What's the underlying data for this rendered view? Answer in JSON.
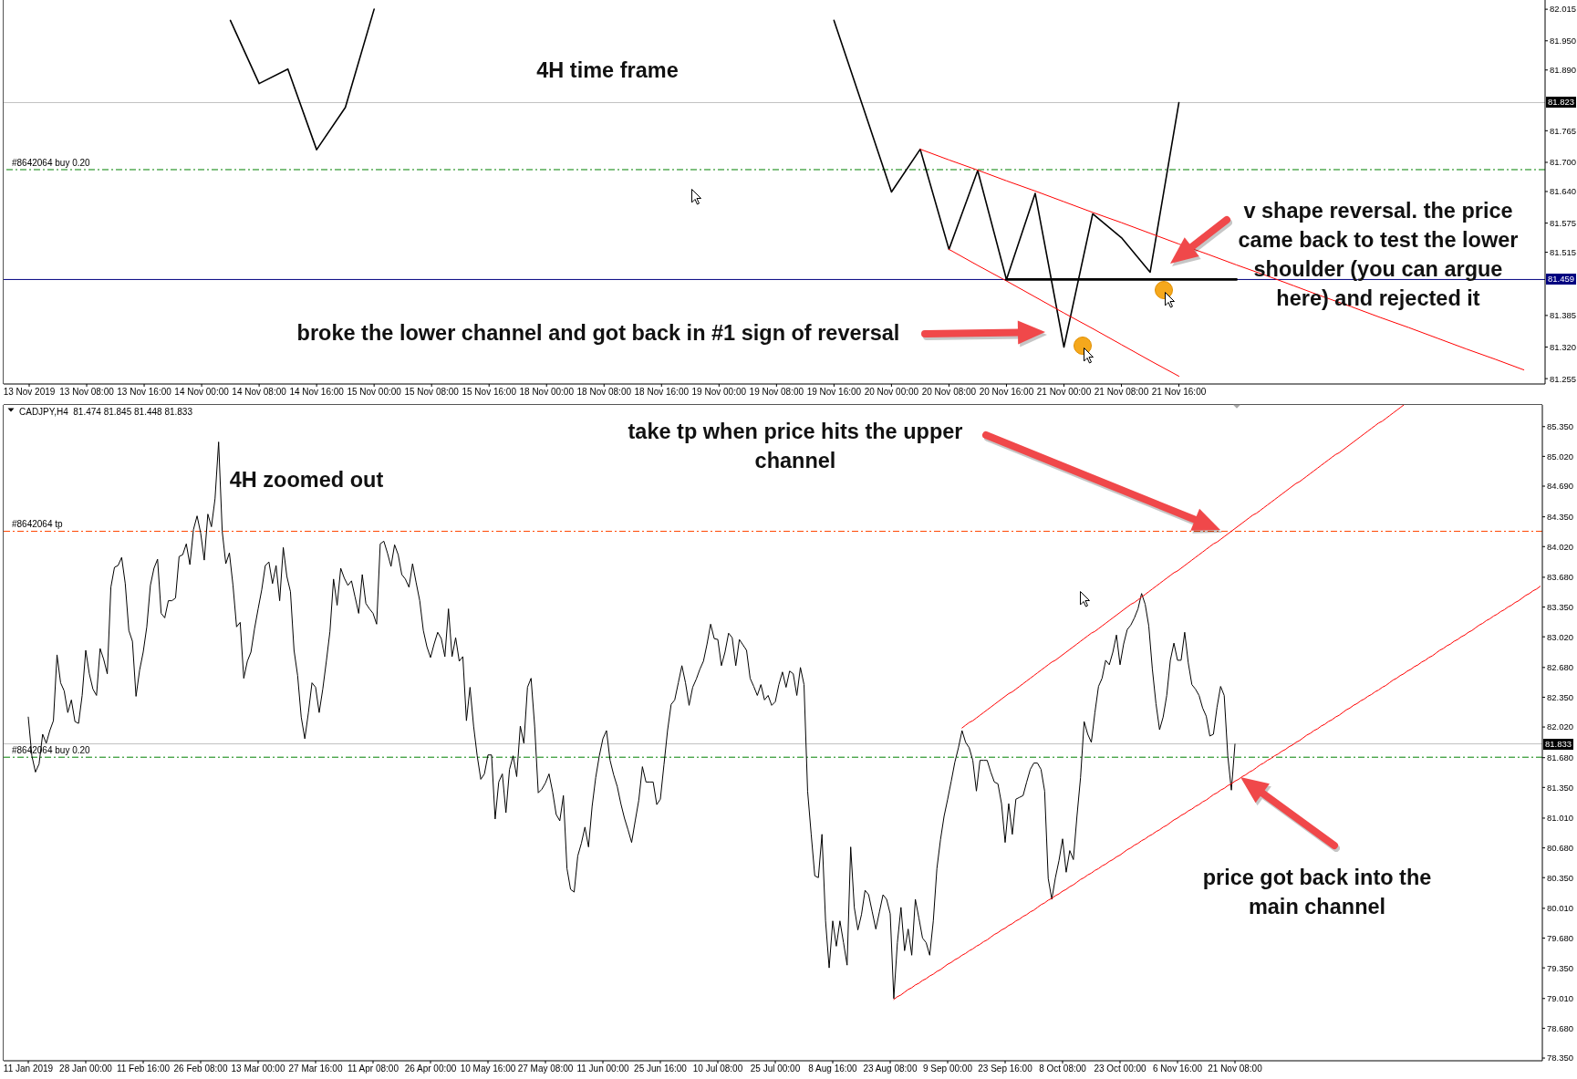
{
  "chart_data": [
    {
      "type": "line",
      "title": "4H time frame",
      "marker": "none",
      "categories": [
        "13 Nov 2019",
        null,
        "13 Nov 08:00",
        null,
        "13 Nov 16:00",
        null,
        "14 Nov 00:00",
        null,
        "14 Nov 08:00",
        null,
        "14 Nov 16:00",
        null,
        "15 Nov 00:00",
        null,
        "15 Nov 08:00",
        null,
        "15 Nov 16:00",
        null,
        "18 Nov 00:00",
        null,
        "18 Nov 08:00",
        null,
        "18 Nov 16:00",
        null,
        "19 Nov 00:00",
        null,
        "19 Nov 08:00",
        null,
        "19 Nov 16:00",
        null,
        "20 Nov 00:00",
        null,
        "20 Nov 08:00",
        null,
        "20 Nov 16:00",
        null,
        "21 Nov 00:00",
        null,
        "21 Nov 08:00",
        null,
        "21 Nov 16:00",
        null,
        null,
        null,
        null,
        null,
        null,
        null,
        null,
        null,
        null,
        null,
        null
      ],
      "series": [
        {
          "color": "#000000",
          "values": [
            null,
            null,
            null,
            null,
            null,
            null,
            null,
            81.992,
            81.862,
            81.892,
            81.726,
            81.813,
            82.015,
            null,
            null,
            null,
            null,
            null,
            null,
            null,
            null,
            null,
            null,
            null,
            null,
            null,
            null,
            null,
            81.992,
            81.816,
            81.639,
            81.727,
            81.521,
            81.683,
            81.459,
            81.636,
            81.32,
            81.594,
            81.545,
            81.474,
            81.823,
            null,
            null,
            null,
            null,
            null,
            null,
            null,
            null,
            null,
            null,
            null,
            null
          ]
        },
        {
          "type": "line",
          "color": "#ff0000",
          "values": [
            null,
            null,
            null,
            null,
            null,
            null,
            null,
            null,
            null,
            null,
            null,
            null,
            null,
            null,
            null,
            null,
            null,
            null,
            null,
            null,
            null,
            null,
            null,
            null,
            null,
            null,
            null,
            null,
            null,
            null,
            null,
            81.727,
            81.705,
            81.684,
            81.662,
            81.641,
            81.619,
            81.597,
            81.576,
            81.554,
            81.532,
            81.511,
            81.489,
            81.468,
            81.446,
            81.424,
            81.403,
            81.381,
            81.36,
            81.338,
            81.316,
            81.295,
            81.273
          ]
        },
        {
          "type": "line",
          "color": "#ff0000",
          "values": [
            null,
            null,
            null,
            null,
            null,
            null,
            null,
            null,
            null,
            null,
            null,
            null,
            null,
            null,
            null,
            null,
            null,
            null,
            null,
            null,
            null,
            null,
            null,
            null,
            null,
            null,
            null,
            null,
            null,
            null,
            null,
            null,
            81.521,
            81.488,
            81.456,
            81.423,
            81.39,
            81.358,
            81.325,
            81.292,
            81.26,
            null,
            null,
            null,
            null,
            null,
            null,
            null,
            null,
            null,
            null,
            null,
            null
          ]
        },
        {
          "type": "line",
          "color": "#000000",
          "values": [
            null,
            null,
            null,
            null,
            null,
            null,
            null,
            null,
            null,
            null,
            null,
            null,
            null,
            null,
            null,
            null,
            null,
            null,
            null,
            null,
            null,
            null,
            null,
            null,
            null,
            null,
            null,
            null,
            null,
            null,
            null,
            null,
            null,
            null,
            81.459,
            81.459,
            81.459,
            81.459,
            81.459,
            81.459,
            81.459,
            81.459,
            81.459,
            null,
            null,
            null,
            null,
            null,
            null,
            null,
            null,
            null,
            null
          ]
        }
      ],
      "ylim": [
        81.244,
        82.034
      ],
      "yticks": [
        {
          "value": 82.015,
          "label": "82.015"
        },
        {
          "value": 81.95,
          "label": "81.950"
        },
        {
          "value": 81.89,
          "label": "81.890"
        },
        {
          "value": 81.765,
          "label": "81.765"
        },
        {
          "value": 81.7,
          "label": "81.700"
        },
        {
          "value": 81.64,
          "label": "81.640"
        },
        {
          "value": 81.575,
          "label": "81.575"
        },
        {
          "value": 81.515,
          "label": "81.515"
        },
        {
          "value": 81.385,
          "label": "81.385"
        },
        {
          "value": 81.32,
          "label": "81.320"
        },
        {
          "value": 81.255,
          "label": "81.255"
        }
      ],
      "ref_lines": [
        {
          "axis": "y",
          "value": 81.823,
          "label": "81.823",
          "color": "#c0c0c0"
        },
        {
          "axis": "y",
          "value": 81.685,
          "label": "#8642064 buy 0.20",
          "color": "#008000",
          "line_style": "dashed"
        },
        {
          "axis": "y",
          "value": 81.459,
          "label": "81.459",
          "color": "#000080"
        }
      ],
      "annotations": [
        "broke the lower channel and got back in #1 sign of reversal",
        "v shape reversal. the price came back to test the lower shoulder (you can argue here) and rejected it"
      ]
    },
    {
      "type": "line",
      "title": "4H zoomed out",
      "subtitle": "CADJPY,H4  81.474 81.845 81.448 81.833",
      "marker": "none",
      "categories": [
        "11 Jan 2019",
        null,
        null,
        null,
        null,
        null,
        null,
        null,
        null,
        null,
        null,
        null,
        null,
        null,
        null,
        null,
        "28 Jan 00:00",
        null,
        null,
        null,
        null,
        null,
        null,
        null,
        null,
        null,
        null,
        null,
        null,
        null,
        null,
        null,
        "11 Feb 16:00",
        null,
        null,
        null,
        null,
        null,
        null,
        null,
        null,
        null,
        null,
        null,
        null,
        null,
        null,
        null,
        "26 Feb 08:00",
        null,
        null,
        null,
        null,
        null,
        null,
        null,
        null,
        null,
        null,
        null,
        null,
        null,
        null,
        null,
        "13 Mar 00:00",
        null,
        null,
        null,
        null,
        null,
        null,
        null,
        null,
        null,
        null,
        null,
        null,
        null,
        null,
        null,
        "27 Mar 16:00",
        null,
        null,
        null,
        null,
        null,
        null,
        null,
        null,
        null,
        null,
        null,
        null,
        null,
        null,
        null,
        "11 Apr 08:00",
        null,
        null,
        null,
        null,
        null,
        null,
        null,
        null,
        null,
        null,
        null,
        null,
        null,
        null,
        null,
        "26 Apr 00:00",
        null,
        null,
        null,
        null,
        null,
        null,
        null,
        null,
        null,
        null,
        null,
        null,
        null,
        null,
        null,
        "10 May 16:00",
        null,
        null,
        null,
        null,
        null,
        null,
        null,
        null,
        null,
        null,
        null,
        null,
        null,
        null,
        null,
        "27 May 08:00",
        null,
        null,
        null,
        null,
        null,
        null,
        null,
        null,
        null,
        null,
        null,
        null,
        null,
        null,
        null,
        "11 Jun 00:00",
        null,
        null,
        null,
        null,
        null,
        null,
        null,
        null,
        null,
        null,
        null,
        null,
        null,
        null,
        null,
        "25 Jun 16:00",
        null,
        null,
        null,
        null,
        null,
        null,
        null,
        null,
        null,
        null,
        null,
        null,
        null,
        null,
        null,
        "10 Jul 08:00",
        null,
        null,
        null,
        null,
        null,
        null,
        null,
        null,
        null,
        null,
        null,
        null,
        null,
        null,
        null,
        "25 Jul 00:00",
        null,
        null,
        null,
        null,
        null,
        null,
        null,
        null,
        null,
        null,
        null,
        null,
        null,
        null,
        null,
        "8 Aug 16:00",
        null,
        null,
        null,
        null,
        null,
        null,
        null,
        null,
        null,
        null,
        null,
        null,
        null,
        null,
        null,
        "23 Aug 08:00",
        null,
        null,
        null,
        null,
        null,
        null,
        null,
        null,
        null,
        null,
        null,
        null,
        null,
        null,
        null,
        "9 Sep 00:00",
        null,
        null,
        null,
        null,
        null,
        null,
        null,
        null,
        null,
        null,
        null,
        null,
        null,
        null,
        null,
        "23 Sep 16:00",
        null,
        null,
        null,
        null,
        null,
        null,
        null,
        null,
        null,
        null,
        null,
        null,
        null,
        null,
        null,
        "8 Oct 08:00",
        null,
        null,
        null,
        null,
        null,
        null,
        null,
        null,
        null,
        null,
        null,
        null,
        null,
        null,
        null,
        "23 Oct 00:00",
        null,
        null,
        null,
        null,
        null,
        null,
        null,
        null,
        null,
        null,
        null,
        null,
        null,
        null,
        null,
        "6 Nov 16:00",
        null,
        null,
        null,
        null,
        null,
        null,
        null,
        null,
        null,
        null,
        null,
        null,
        null,
        null,
        null,
        "21 Nov 08:00",
        null,
        null,
        null,
        null,
        null,
        null,
        null,
        null,
        null,
        null,
        null,
        null,
        null,
        null,
        null,
        null,
        null,
        null,
        null,
        null,
        null,
        null,
        null,
        null,
        null,
        null,
        null,
        null,
        null,
        null,
        null,
        null,
        null,
        null,
        null,
        null,
        null,
        null,
        null,
        null,
        null,
        null,
        null,
        null,
        null,
        null,
        null,
        null,
        null,
        null,
        null,
        null,
        null,
        null,
        null,
        null,
        null,
        null,
        null,
        null,
        null,
        null,
        null,
        null,
        null,
        null,
        null,
        null,
        null,
        null,
        null,
        null,
        null,
        null,
        null,
        null,
        null,
        null,
        null,
        null,
        null,
        null,
        null,
        null,
        null
      ],
      "series": [
        {
          "color": "#000000",
          "values": [
            82.13,
            81.7,
            81.52,
            81.61,
            81.94,
            81.84,
            81.98,
            82.09,
            82.82,
            82.51,
            82.42,
            82.18,
            82.32,
            82.08,
            82.06,
            82.37,
            82.87,
            82.61,
            82.44,
            82.37,
            82.89,
            82.77,
            82.61,
            83.57,
            83.79,
            83.81,
            83.9,
            83.61,
            83.09,
            82.97,
            82.36,
            82.65,
            82.85,
            83.13,
            83.59,
            83.78,
            83.88,
            83.28,
            83.23,
            83.42,
            83.42,
            83.45,
            83.91,
            83.93,
            84.05,
            83.82,
            84.21,
            84.36,
            84.17,
            83.87,
            84.38,
            84.24,
            84.55,
            85.18,
            84.19,
            83.83,
            83.95,
            83.59,
            83.13,
            83.18,
            82.56,
            82.75,
            82.85,
            83.11,
            83.33,
            83.54,
            83.81,
            83.85,
            83.61,
            83.81,
            83.42,
            84.01,
            83.69,
            83.52,
            82.87,
            82.59,
            82.13,
            81.89,
            82.18,
            82.51,
            82.46,
            82.18,
            82.44,
            82.75,
            83.08,
            83.66,
            83.37,
            83.78,
            83.67,
            83.59,
            83.64,
            83.46,
            83.28,
            83.71,
            83.39,
            83.33,
            83.28,
            83.16,
            84.05,
            84.08,
            83.95,
            83.8,
            84.04,
            83.93,
            83.71,
            83.66,
            83.57,
            83.83,
            83.62,
            83.42,
            83.09,
            82.91,
            82.79,
            82.94,
            83.07,
            83.0,
            82.8,
            83.33,
            82.8,
            83.01,
            82.75,
            82.8,
            82.09,
            82.46,
            82.03,
            81.7,
            81.44,
            81.5,
            81.71,
            81.71,
            81.0,
            81.41,
            81.5,
            81.07,
            81.55,
            81.7,
            81.47,
            82.03,
            81.84,
            82.46,
            82.56,
            82.03,
            81.29,
            81.33,
            81.4,
            81.5,
            81.3,
            81.05,
            80.98,
            81.26,
            80.45,
            80.22,
            80.19,
            80.59,
            80.73,
            80.91,
            80.69,
            81.14,
            81.46,
            81.7,
            81.89,
            81.98,
            81.65,
            81.49,
            81.36,
            81.17,
            81.01,
            80.88,
            80.74,
            80.98,
            81.21,
            81.58,
            81.41,
            81.41,
            81.41,
            81.16,
            81.22,
            81.6,
            81.98,
            82.27,
            82.32,
            82.51,
            82.7,
            82.51,
            82.26,
            82.46,
            82.55,
            82.66,
            82.75,
            82.94,
            83.16,
            83.0,
            82.99,
            82.7,
            82.85,
            83.06,
            83.01,
            82.7,
            82.99,
            82.93,
            82.87,
            82.56,
            82.47,
            82.37,
            82.49,
            82.32,
            82.37,
            82.26,
            82.3,
            82.49,
            82.63,
            82.46,
            82.64,
            82.61,
            82.37,
            82.68,
            82.49,
            81.31,
            80.83,
            80.37,
            80.35,
            80.83,
            79.87,
            79.35,
            79.87,
            79.59,
            79.87,
            79.63,
            79.38,
            80.69,
            80.02,
            79.77,
            79.94,
            80.21,
            80.16,
            79.97,
            79.78,
            79.97,
            80.16,
            80.11,
            79.95,
            79.01,
            79.63,
            80.02,
            79.54,
            79.78,
            79.49,
            80.11,
            79.9,
            79.68,
            79.63,
            79.49,
            79.87,
            80.45,
            80.77,
            81.03,
            81.22,
            81.42,
            81.63,
            81.79,
            81.98,
            81.85,
            81.79,
            81.65,
            81.31,
            81.65,
            81.65,
            81.65,
            81.52,
            81.41,
            81.39,
            81.17,
            80.74,
            81.17,
            80.83,
            81.22,
            81.24,
            81.26,
            81.41,
            81.55,
            81.62,
            81.62,
            81.55,
            81.31,
            80.34,
            80.11,
            80.35,
            80.54,
            80.78,
            80.41,
            80.65,
            80.55,
            81.03,
            81.46,
            82.08,
            81.94,
            81.85,
            82.18,
            82.47,
            82.56,
            82.76,
            82.71,
            82.85,
            83.04,
            82.71,
            82.94,
            83.1,
            83.15,
            83.23,
            83.33,
            83.5,
            83.38,
            83.14,
            82.66,
            82.28,
            81.99,
            82.13,
            82.37,
            82.76,
            82.95,
            82.76,
            82.76,
            83.07,
            82.73,
            82.49,
            82.44,
            82.37,
            82.23,
            82.14,
            81.92,
            81.94,
            82.24,
            82.47,
            82.37,
            81.7,
            81.32,
            81.83,
            null,
            null,
            null,
            null,
            null,
            null,
            null,
            null,
            null,
            null,
            null,
            null,
            null,
            null,
            null,
            null,
            null,
            null,
            null,
            null,
            null,
            null,
            null,
            null,
            null,
            null,
            null,
            null,
            null,
            null,
            null,
            null,
            null,
            null,
            null,
            null,
            null,
            null,
            null,
            null,
            null,
            null,
            null,
            null,
            null,
            null,
            null,
            null,
            null,
            null,
            null,
            null,
            null,
            null,
            null,
            null,
            null,
            null,
            null,
            null,
            null,
            null,
            null,
            null,
            null,
            null,
            null,
            null,
            null,
            null,
            null,
            null,
            null,
            null,
            null,
            null,
            null,
            null,
            null,
            null,
            null,
            null,
            null,
            null,
            null
          ]
        },
        {
          "type": "line",
          "color": "#ff0000",
          "values": [
            null,
            null,
            null,
            null,
            null,
            null,
            null,
            null,
            null,
            null,
            null,
            null,
            null,
            null,
            null,
            null,
            null,
            null,
            null,
            null,
            null,
            null,
            null,
            null,
            null,
            null,
            null,
            null,
            null,
            null,
            null,
            null,
            null,
            null,
            null,
            null,
            null,
            null,
            null,
            null,
            null,
            null,
            null,
            null,
            null,
            null,
            null,
            null,
            null,
            null,
            null,
            null,
            null,
            null,
            null,
            null,
            null,
            null,
            null,
            null,
            null,
            null,
            null,
            null,
            null,
            null,
            null,
            null,
            null,
            null,
            null,
            null,
            null,
            null,
            null,
            null,
            null,
            null,
            null,
            null,
            null,
            null,
            null,
            null,
            null,
            null,
            null,
            null,
            null,
            null,
            null,
            null,
            null,
            null,
            null,
            null,
            null,
            null,
            null,
            null,
            null,
            null,
            null,
            null,
            null,
            null,
            null,
            null,
            null,
            null,
            null,
            null,
            null,
            null,
            null,
            null,
            null,
            null,
            null,
            null,
            null,
            null,
            null,
            null,
            null,
            null,
            null,
            null,
            null,
            null,
            null,
            null,
            null,
            null,
            null,
            null,
            null,
            null,
            null,
            null,
            null,
            null,
            null,
            null,
            null,
            null,
            null,
            null,
            null,
            null,
            null,
            null,
            null,
            null,
            null,
            null,
            null,
            null,
            null,
            null,
            null,
            null,
            null,
            null,
            null,
            null,
            null,
            null,
            null,
            null,
            null,
            null,
            null,
            null,
            null,
            null,
            null,
            null,
            null,
            null,
            null,
            null,
            null,
            null,
            null,
            null,
            null,
            null,
            null,
            null,
            null,
            null,
            null,
            null,
            null,
            null,
            null,
            null,
            null,
            null,
            null,
            null,
            null,
            null,
            null,
            null,
            null,
            null,
            null,
            null,
            null,
            null,
            null,
            null,
            null,
            null,
            null,
            null,
            null,
            null,
            null,
            null,
            null,
            null,
            null,
            null,
            null,
            null,
            null,
            null,
            null,
            null,
            null,
            null,
            null,
            null,
            null,
            null,
            null,
            null,
            null,
            null,
            null,
            null,
            null,
            null,
            null,
            null,
            null,
            null,
            null,
            null,
            null,
            null,
            null,
            null,
            null,
            null,
            null,
            null,
            82.01,
            82.04,
            82.07,
            82.09,
            82.12,
            82.15,
            82.18,
            82.21,
            82.24,
            82.27,
            82.3,
            82.33,
            82.36,
            82.39,
            82.41,
            82.44,
            82.47,
            82.5,
            82.53,
            82.56,
            82.59,
            82.62,
            82.65,
            82.68,
            82.71,
            82.74,
            82.76,
            82.79,
            82.82,
            82.85,
            82.88,
            82.91,
            82.94,
            82.97,
            83.0,
            83.03,
            83.06,
            83.08,
            83.11,
            83.14,
            83.17,
            83.2,
            83.23,
            83.26,
            83.29,
            83.32,
            83.35,
            83.38,
            83.4,
            83.43,
            83.46,
            83.49,
            83.52,
            83.55,
            83.58,
            83.61,
            83.64,
            83.67,
            83.7,
            83.73,
            83.75,
            83.78,
            83.81,
            83.84,
            83.87,
            83.9,
            83.93,
            83.96,
            83.99,
            84.02,
            84.05,
            84.07,
            84.1,
            84.13,
            84.16,
            84.19,
            84.22,
            84.25,
            84.28,
            84.31,
            84.34,
            84.37,
            84.39,
            84.42,
            84.45,
            84.48,
            84.51,
            84.54,
            84.57,
            84.6,
            84.63,
            84.66,
            84.69,
            84.72,
            84.74,
            84.77,
            84.8,
            84.83,
            84.86,
            84.89,
            84.92,
            84.95,
            84.98,
            85.01,
            85.04,
            85.06,
            85.09,
            85.12,
            85.15,
            85.18,
            85.21,
            85.24,
            85.27,
            85.3,
            85.33,
            85.36,
            85.39,
            85.41,
            85.44,
            85.47,
            85.5,
            85.53,
            85.56,
            85.59,
            null,
            null,
            null,
            null,
            null,
            null,
            null,
            null,
            null,
            null,
            null,
            null,
            null,
            null,
            null,
            null,
            null,
            null,
            null,
            null,
            null,
            null,
            null,
            null,
            null,
            null,
            null,
            null,
            null,
            null,
            null,
            null,
            null,
            null,
            null,
            null,
            null,
            null
          ]
        },
        {
          "type": "line",
          "color": "#ff0000",
          "values": [
            null,
            null,
            null,
            null,
            null,
            null,
            null,
            null,
            null,
            null,
            null,
            null,
            null,
            null,
            null,
            null,
            null,
            null,
            null,
            null,
            null,
            null,
            null,
            null,
            null,
            null,
            null,
            null,
            null,
            null,
            null,
            null,
            null,
            null,
            null,
            null,
            null,
            null,
            null,
            null,
            null,
            null,
            null,
            null,
            null,
            null,
            null,
            null,
            null,
            null,
            null,
            null,
            null,
            null,
            null,
            null,
            null,
            null,
            null,
            null,
            null,
            null,
            null,
            null,
            null,
            null,
            null,
            null,
            null,
            null,
            null,
            null,
            null,
            null,
            null,
            null,
            null,
            null,
            null,
            null,
            null,
            null,
            null,
            null,
            null,
            null,
            null,
            null,
            null,
            null,
            null,
            null,
            null,
            null,
            null,
            null,
            null,
            null,
            null,
            null,
            null,
            null,
            null,
            null,
            null,
            null,
            null,
            null,
            null,
            null,
            null,
            null,
            null,
            null,
            null,
            null,
            null,
            null,
            null,
            null,
            null,
            null,
            null,
            null,
            null,
            null,
            null,
            null,
            null,
            null,
            null,
            null,
            null,
            null,
            null,
            null,
            null,
            null,
            null,
            null,
            null,
            null,
            null,
            null,
            null,
            null,
            null,
            null,
            null,
            null,
            null,
            null,
            null,
            null,
            null,
            null,
            null,
            null,
            null,
            null,
            null,
            null,
            null,
            null,
            null,
            null,
            null,
            null,
            null,
            null,
            null,
            null,
            null,
            null,
            null,
            null,
            null,
            null,
            null,
            null,
            null,
            null,
            null,
            null,
            null,
            null,
            null,
            null,
            null,
            null,
            null,
            null,
            null,
            null,
            null,
            null,
            null,
            null,
            null,
            null,
            null,
            null,
            null,
            null,
            null,
            null,
            null,
            null,
            null,
            null,
            null,
            null,
            null,
            null,
            null,
            null,
            null,
            null,
            null,
            null,
            null,
            null,
            null,
            null,
            null,
            null,
            null,
            null,
            null,
            null,
            null,
            null,
            null,
            null,
            null,
            null,
            null,
            null,
            null,
            null,
            null,
            79.0,
            79.03,
            79.05,
            79.08,
            79.11,
            79.13,
            79.16,
            79.18,
            79.21,
            79.23,
            79.26,
            79.28,
            79.31,
            79.33,
            79.36,
            79.39,
            79.41,
            79.44,
            79.46,
            79.49,
            79.51,
            79.54,
            79.56,
            79.59,
            79.61,
            79.64,
            79.66,
            79.69,
            79.72,
            79.74,
            79.77,
            79.79,
            79.82,
            79.84,
            79.87,
            79.89,
            79.92,
            79.94,
            79.97,
            79.99,
            80.02,
            80.05,
            80.07,
            80.1,
            80.12,
            80.15,
            80.17,
            80.2,
            80.22,
            80.25,
            80.27,
            80.3,
            80.33,
            80.35,
            80.38,
            80.4,
            80.43,
            80.45,
            80.48,
            80.5,
            80.53,
            80.55,
            80.58,
            80.6,
            80.63,
            80.66,
            80.68,
            80.71,
            80.73,
            80.76,
            80.78,
            80.81,
            80.83,
            80.86,
            80.88,
            80.91,
            80.93,
            80.96,
            80.99,
            81.01,
            81.04,
            81.06,
            81.09,
            81.11,
            81.14,
            81.16,
            81.19,
            81.21,
            81.24,
            81.27,
            81.29,
            81.32,
            81.34,
            81.37,
            81.39,
            81.42,
            81.44,
            81.47,
            81.49,
            81.52,
            81.54,
            81.57,
            81.6,
            81.62,
            81.65,
            81.67,
            81.7,
            81.72,
            81.75,
            81.77,
            81.8,
            81.82,
            81.85,
            81.87,
            81.9,
            81.93,
            81.95,
            81.98,
            82.0,
            82.03,
            82.05,
            82.08,
            82.1,
            82.13,
            82.15,
            82.18,
            82.21,
            82.23,
            82.26,
            82.28,
            82.31,
            82.33,
            82.36,
            82.38,
            82.41,
            82.43,
            82.46,
            82.48,
            82.51,
            82.54,
            82.56,
            82.59,
            82.61,
            82.64,
            82.66,
            82.69,
            82.71,
            82.74,
            82.76,
            82.79,
            82.81,
            82.84,
            82.87,
            82.89,
            82.92,
            82.94,
            82.97,
            82.99,
            83.02,
            83.04,
            83.07,
            83.09,
            83.12,
            83.15,
            83.17,
            83.2,
            83.22,
            83.25,
            83.27,
            83.3,
            83.32,
            83.35,
            83.37,
            83.4,
            83.42,
            83.45,
            83.48,
            83.5,
            83.53,
            83.55,
            83.58
          ]
        }
      ],
      "ylim": [
        78.32,
        85.59
      ],
      "yticks": [
        {
          "value": 85.35,
          "label": "85.350"
        },
        {
          "value": 85.02,
          "label": "85.020"
        },
        {
          "value": 84.69,
          "label": "84.690"
        },
        {
          "value": 84.35,
          "label": "84.350"
        },
        {
          "value": 84.02,
          "label": "84.020"
        },
        {
          "value": 83.68,
          "label": "83.680"
        },
        {
          "value": 83.35,
          "label": "83.350"
        },
        {
          "value": 83.02,
          "label": "83.020"
        },
        {
          "value": 82.68,
          "label": "82.680"
        },
        {
          "value": 82.35,
          "label": "82.350"
        },
        {
          "value": 82.02,
          "label": "82.020"
        },
        {
          "value": 81.68,
          "label": "81.680"
        },
        {
          "value": 81.35,
          "label": "81.350"
        },
        {
          "value": 81.01,
          "label": "81.010"
        },
        {
          "value": 80.68,
          "label": "80.680"
        },
        {
          "value": 80.35,
          "label": "80.350"
        },
        {
          "value": 80.01,
          "label": "80.010"
        },
        {
          "value": 79.68,
          "label": "79.680"
        },
        {
          "value": 79.35,
          "label": "79.350"
        },
        {
          "value": 79.01,
          "label": "79.010"
        },
        {
          "value": 78.68,
          "label": "78.680"
        },
        {
          "value": 78.35,
          "label": "78.350"
        }
      ],
      "ref_lines": [
        {
          "axis": "y",
          "value": 84.19,
          "label": "#8642064 tp",
          "color": "#ff4500",
          "line_style": "dashed"
        },
        {
          "axis": "y",
          "value": 81.833,
          "label": "81.833",
          "color": "#c0c0c0"
        },
        {
          "axis": "y",
          "value": 81.685,
          "label": "#8642064 buy 0.20",
          "color": "#008000",
          "line_style": "dashed"
        }
      ],
      "annotations": [
        "take tp when price hits the upper channel",
        "price got back into the main channel"
      ]
    }
  ]
}
